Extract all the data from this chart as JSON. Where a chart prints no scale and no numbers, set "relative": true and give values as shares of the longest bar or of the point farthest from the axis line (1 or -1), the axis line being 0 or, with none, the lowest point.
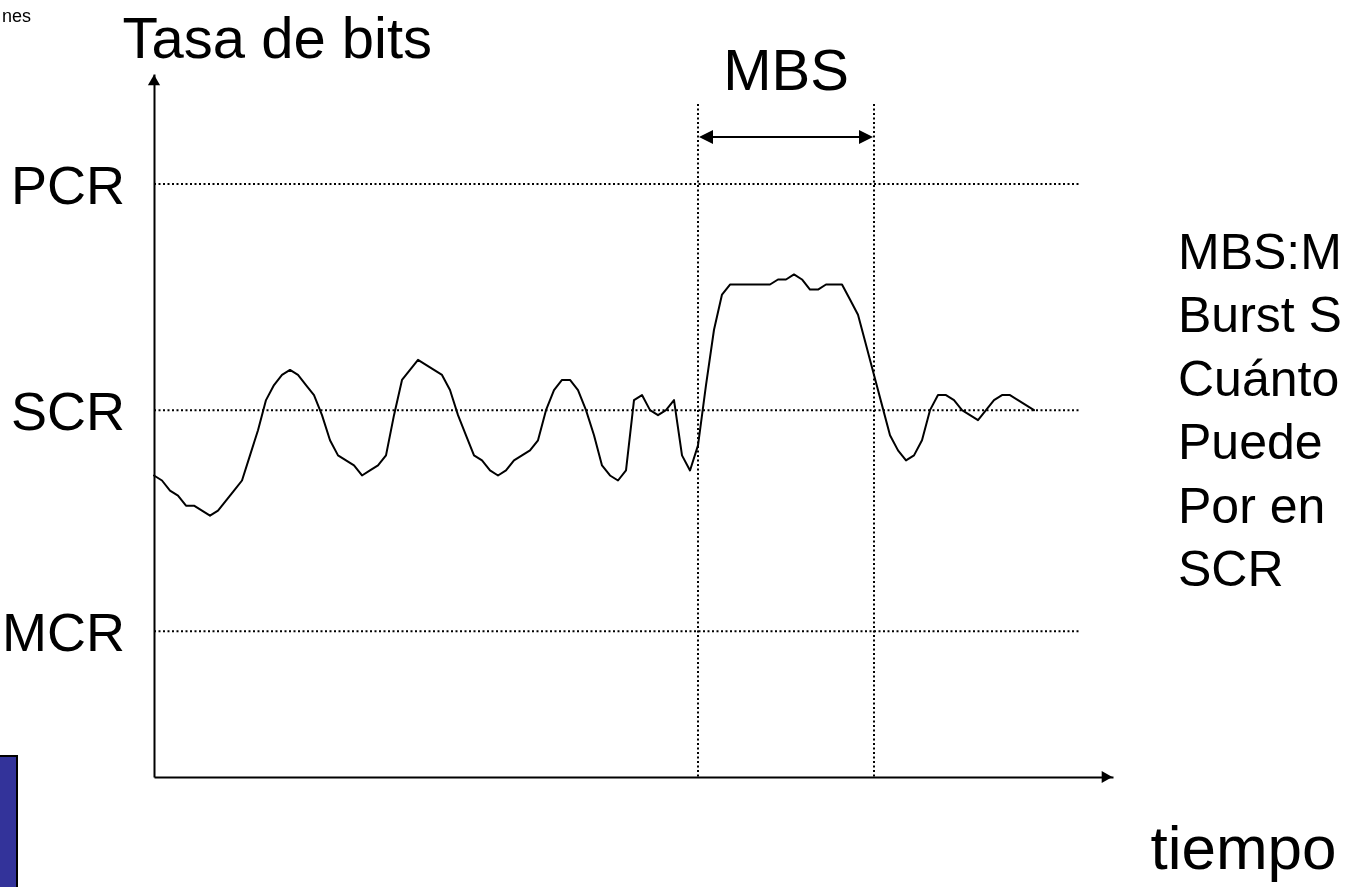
{
  "chart_data": {
    "type": "line",
    "relative": true,
    "ylabel": "Tasa de bits",
    "xlabel": "tiempo",
    "categories": [
      null,
      null,
      null,
      null,
      null,
      null,
      null,
      null,
      null,
      null,
      null,
      null,
      null,
      null,
      null,
      null,
      null,
      null,
      null,
      null,
      null,
      null,
      null,
      null,
      null,
      null,
      null,
      null,
      null,
      null,
      null,
      null,
      null,
      null,
      null,
      null,
      null,
      null,
      null,
      null,
      null,
      null,
      null,
      null,
      null,
      null,
      null,
      null,
      null,
      null,
      null,
      null,
      null,
      null,
      null,
      null,
      null,
      null,
      null,
      null,
      null,
      null,
      null,
      null,
      null,
      null,
      null,
      null,
      null,
      null,
      null,
      null,
      null,
      null,
      null,
      null,
      null,
      null,
      null,
      null,
      null,
      null,
      null,
      null,
      null,
      null,
      null,
      null,
      null,
      null,
      null,
      null,
      null,
      null,
      null,
      null,
      null,
      null,
      null,
      null,
      null,
      null,
      null,
      null,
      null,
      null,
      null,
      null,
      null,
      null,
      null
    ],
    "values": [
      0.6,
      0.59,
      0.57,
      0.56,
      0.54,
      0.54,
      0.53,
      0.52,
      0.53,
      0.55,
      0.57,
      0.59,
      0.64,
      0.69,
      0.75,
      0.78,
      0.8,
      0.81,
      0.8,
      0.78,
      0.76,
      0.72,
      0.67,
      0.64,
      0.63,
      0.62,
      0.6,
      0.61,
      0.62,
      0.64,
      0.72,
      0.79,
      0.81,
      0.83,
      0.82,
      0.81,
      0.8,
      0.77,
      0.72,
      0.68,
      0.64,
      0.63,
      0.61,
      0.6,
      0.61,
      0.63,
      0.64,
      0.65,
      0.67,
      0.73,
      0.77,
      0.79,
      0.79,
      0.77,
      0.73,
      0.68,
      0.62,
      0.6,
      0.59,
      0.61,
      0.75,
      0.76,
      0.73,
      0.72,
      0.73,
      0.75,
      0.64,
      0.61,
      0.66,
      0.78,
      0.89,
      0.96,
      0.98,
      0.98,
      0.98,
      0.98,
      0.98,
      0.98,
      0.99,
      0.99,
      1,
      0.99,
      0.97,
      0.97,
      0.98,
      0.98,
      0.98,
      0.95,
      0.92,
      0.86,
      0.8,
      0.74,
      0.68,
      0.65,
      0.63,
      0.64,
      0.67,
      0.73,
      0.76,
      0.76,
      0.75,
      0.73,
      0.72,
      0.71,
      0.73,
      0.75,
      0.76,
      0.76,
      0.75,
      0.74,
      0.73
    ],
    "color": "#000000",
    "ref_lines": [
      {
        "axis": "y",
        "value": 1.18,
        "label": "PCR",
        "color": "#000000",
        "line_style": "dotted"
      },
      {
        "axis": "y",
        "value": 0.73,
        "label": "SCR",
        "color": "#000000",
        "line_style": "dotted"
      },
      {
        "axis": "y",
        "value": 0.29,
        "label": "MCR",
        "color": "#000000",
        "line_style": "dotted"
      }
    ],
    "annotations": [
      "nes",
      "MBS",
      "MBS:M",
      "Burst S",
      "Cuánto",
      "Puede",
      "Por en",
      "SCR"
    ]
  }
}
